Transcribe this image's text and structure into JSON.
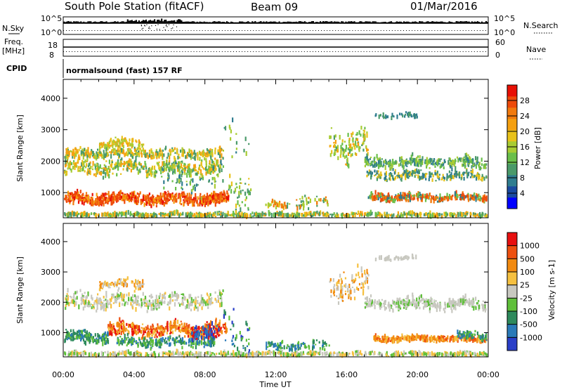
{
  "header": {
    "station": "South Pole Station (fitACF)",
    "beam": "Beam 09",
    "date": "01/Mar/2016"
  },
  "strip_labels": {
    "nsky": "N.Sky",
    "nsearch": "N.Search",
    "freq": "Freq.",
    "freq_unit": "[MHz]",
    "nave": "Nave",
    "cpid": "CPID",
    "cpid_value": "normalsound (fast) 157 RF",
    "nsky_ticks": [
      "10^5",
      "10^0"
    ],
    "nsearch_ticks": [
      "10^5",
      "10^0"
    ],
    "freq_ticks": [
      "18",
      "8"
    ],
    "nave_ticks": [
      "60",
      "0"
    ]
  },
  "chart_data": [
    {
      "type": "heatmap",
      "name": "power",
      "ylabel": "Slant Range [km]",
      "ylim": [
        200,
        4600
      ],
      "y_ticks": [
        "1000",
        "2000",
        "3000",
        "4000"
      ],
      "x_ticks": [
        "00:00",
        "04:00",
        "08:00",
        "12:00",
        "16:00",
        "20:00",
        "00:00"
      ],
      "colorbar": {
        "label": "Power [dB]",
        "ticks": [
          "4",
          "8",
          "12",
          "16",
          "20",
          "24",
          "28"
        ],
        "colors": [
          "#0000ff",
          "#1a4aa0",
          "#2f7d8f",
          "#4a9a6a",
          "#6abf4a",
          "#a8cc33",
          "#e8c21a",
          "#f5a010",
          "#f27a0d",
          "#ee4a0a",
          "#e81005"
        ]
      }
    },
    {
      "type": "heatmap",
      "name": "velocity",
      "ylabel": "Slant Range [km]",
      "ylim": [
        200,
        4600
      ],
      "y_ticks": [
        "1000",
        "2000",
        "3000",
        "4000"
      ],
      "x_ticks": [
        "00:00",
        "04:00",
        "08:00",
        "12:00",
        "16:00",
        "20:00",
        "00:00"
      ],
      "xlabel": "Time UT",
      "colorbar": {
        "label": "Velocity [m s-1]",
        "ticks": [
          "1000",
          "500",
          "100",
          "25",
          "-25",
          "-100",
          "-500",
          "-1000"
        ],
        "colors": [
          "#2a3fc8",
          "#2a7ab8",
          "#2e8a5c",
          "#5fbf3a",
          "#c8c8c0",
          "#f5c040",
          "#f28a10",
          "#ee5010",
          "#e81010"
        ]
      }
    }
  ]
}
